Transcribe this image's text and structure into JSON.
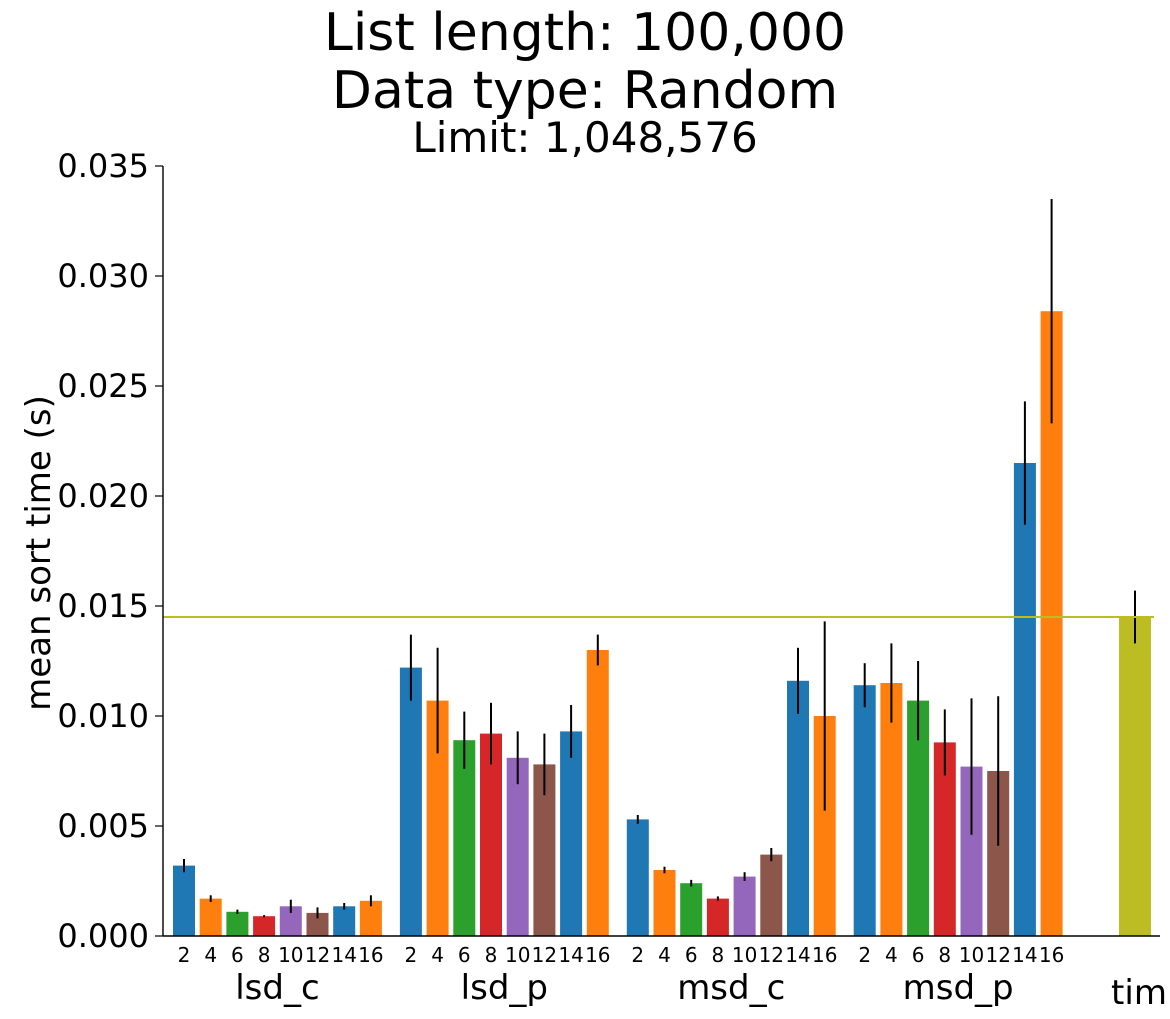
{
  "chart_data": {
    "type": "bar",
    "title": [
      "List length: 100,000",
      "Data type: Random"
    ],
    "subtitle": "Limit: 1,048,576",
    "xlabel": "",
    "ylabel": "mean sort time (s)",
    "ylim": [
      0,
      0.035
    ],
    "yticks": [
      "0.000",
      "0.005",
      "0.010",
      "0.015",
      "0.020",
      "0.025",
      "0.030",
      "0.035"
    ],
    "grid": false,
    "legend": "none",
    "colors": [
      "#1f77b4",
      "#ff7f0e",
      "#2ca02c",
      "#d62728",
      "#9467bd",
      "#8c564b"
    ],
    "reference_line": {
      "value": 0.0145,
      "color": "#bcbd22"
    },
    "groups": [
      {
        "name": "lsd_c",
        "bars": [
          {
            "label": "2",
            "value": 0.0032,
            "err": 0.0003
          },
          {
            "label": "4",
            "value": 0.0017,
            "err": 0.00015
          },
          {
            "label": "6",
            "value": 0.0011,
            "err": 0.0001
          },
          {
            "label": "8",
            "value": 0.0009,
            "err": 5e-05
          },
          {
            "label": "10",
            "value": 0.00135,
            "err": 0.0003
          },
          {
            "label": "12",
            "value": 0.00105,
            "err": 0.00025
          },
          {
            "label": "14",
            "value": 0.00135,
            "err": 0.00015
          },
          {
            "label": "16",
            "value": 0.0016,
            "err": 0.00025
          }
        ]
      },
      {
        "name": "lsd_p",
        "bars": [
          {
            "label": "2",
            "value": 0.0122,
            "err": 0.0015
          },
          {
            "label": "4",
            "value": 0.0107,
            "err": 0.0024
          },
          {
            "label": "6",
            "value": 0.0089,
            "err": 0.0013
          },
          {
            "label": "8",
            "value": 0.0092,
            "err": 0.0014
          },
          {
            "label": "10",
            "value": 0.0081,
            "err": 0.0012
          },
          {
            "label": "12",
            "value": 0.0078,
            "err": 0.0014
          },
          {
            "label": "14",
            "value": 0.0093,
            "err": 0.0012
          },
          {
            "label": "16",
            "value": 0.013,
            "err": 0.0007
          }
        ]
      },
      {
        "name": "msd_c",
        "bars": [
          {
            "label": "2",
            "value": 0.0053,
            "err": 0.0002
          },
          {
            "label": "4",
            "value": 0.003,
            "err": 0.00015
          },
          {
            "label": "6",
            "value": 0.0024,
            "err": 0.00015
          },
          {
            "label": "8",
            "value": 0.0017,
            "err": 0.0001
          },
          {
            "label": "10",
            "value": 0.0027,
            "err": 0.0002
          },
          {
            "label": "12",
            "value": 0.0037,
            "err": 0.0003
          },
          {
            "label": "14",
            "value": 0.0116,
            "err": 0.0015
          },
          {
            "label": "16",
            "value": 0.01,
            "err": 0.0043
          }
        ]
      },
      {
        "name": "msd_p",
        "bars": [
          {
            "label": "2",
            "value": 0.0114,
            "err": 0.001
          },
          {
            "label": "4",
            "value": 0.0115,
            "err": 0.0018
          },
          {
            "label": "6",
            "value": 0.0107,
            "err": 0.0018
          },
          {
            "label": "8",
            "value": 0.0088,
            "err": 0.0015
          },
          {
            "label": "10",
            "value": 0.0077,
            "err": 0.0031
          },
          {
            "label": "12",
            "value": 0.0075,
            "err": 0.0034
          },
          {
            "label": "14",
            "value": 0.0215,
            "err": 0.0028
          },
          {
            "label": "16",
            "value": 0.0284,
            "err": 0.0051
          }
        ]
      }
    ],
    "extra_bar": {
      "name": "tim",
      "value": 0.0145,
      "err": 0.0012,
      "color": "#bcbd22"
    }
  }
}
